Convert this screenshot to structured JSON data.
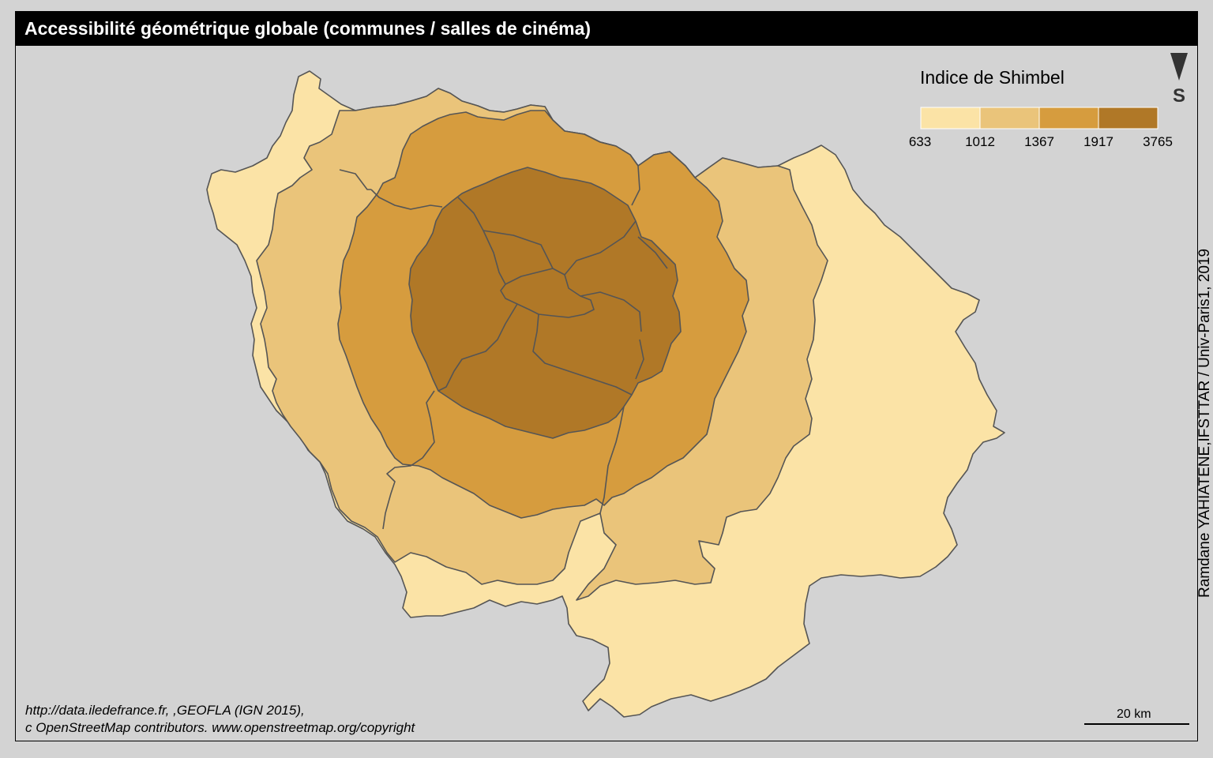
{
  "map": {
    "title": "Accessibilité géométrique globale (communes / salles de cinéma)",
    "north_arrow": {
      "icon": "north-arrow-icon",
      "letter": "S"
    },
    "legend": {
      "title": "Indice de Shimbel",
      "breaks": [
        "633",
        "1012",
        "1367",
        "1917",
        "3765"
      ],
      "colors": [
        "#fbe3a6",
        "#eac47a",
        "#d69c3e",
        "#b07827"
      ]
    },
    "credit": "Ramdane YAHIATENE,IFSTTAR / Univ-Paris1, 2019",
    "sources": [
      "http://data.iledefrance.fr, ,GEOFLA (IGN 2015),",
      "c OpenStreetMap contributors. www.openstreetmap.org/copyright"
    ],
    "scale": {
      "label": "20 km"
    },
    "colors": {
      "background": "#d3d3d3",
      "border": "#555555"
    }
  }
}
